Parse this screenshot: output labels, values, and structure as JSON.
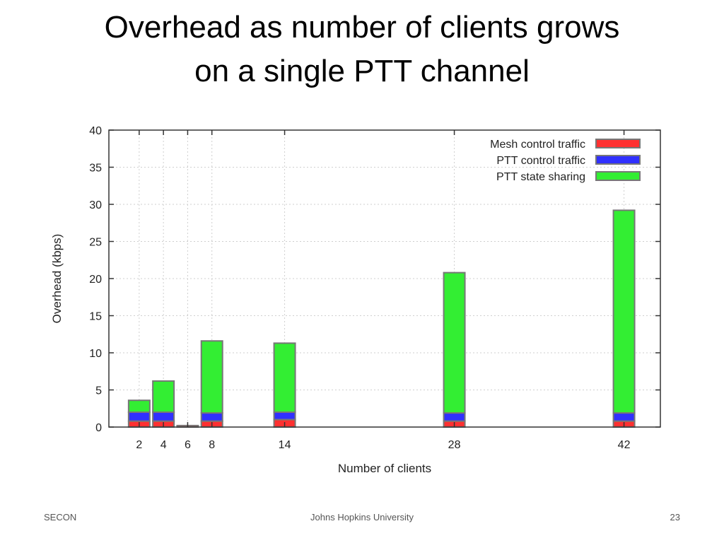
{
  "slide": {
    "title_line1": "Overhead as number of clients grows",
    "title_line2": "on a single PTT channel"
  },
  "footer": {
    "left": "SECON",
    "center": "Johns Hopkins University",
    "right": "23"
  },
  "chart_data": {
    "type": "bar",
    "stacked": true,
    "x_axis_type": "numeric",
    "xlabel": "Number of clients",
    "ylabel": "Overhead (kbps)",
    "xticks": [
      2,
      4,
      6,
      8,
      14,
      28,
      42
    ],
    "xlim": [
      -0.5,
      45
    ],
    "ylim": [
      0,
      40
    ],
    "yticks": [
      0,
      5,
      10,
      15,
      20,
      25,
      30,
      35,
      40
    ],
    "grid": true,
    "legend_position": "top-right",
    "x": [
      2,
      4,
      6,
      8,
      14,
      28,
      42
    ],
    "series": [
      {
        "name": "Mesh control traffic",
        "color": "#ff3030",
        "values": [
          0.8,
          0.8,
          0.2,
          0.8,
          1.0,
          0.8,
          0.8
        ]
      },
      {
        "name": "PTT control traffic",
        "color": "#3030ff",
        "values": [
          1.2,
          1.2,
          0.0,
          1.1,
          1.0,
          1.1,
          1.1
        ]
      },
      {
        "name": "PTT state sharing",
        "color": "#33ee33",
        "values": [
          1.6,
          4.2,
          0.0,
          9.7,
          9.3,
          18.9,
          27.3
        ]
      }
    ]
  }
}
